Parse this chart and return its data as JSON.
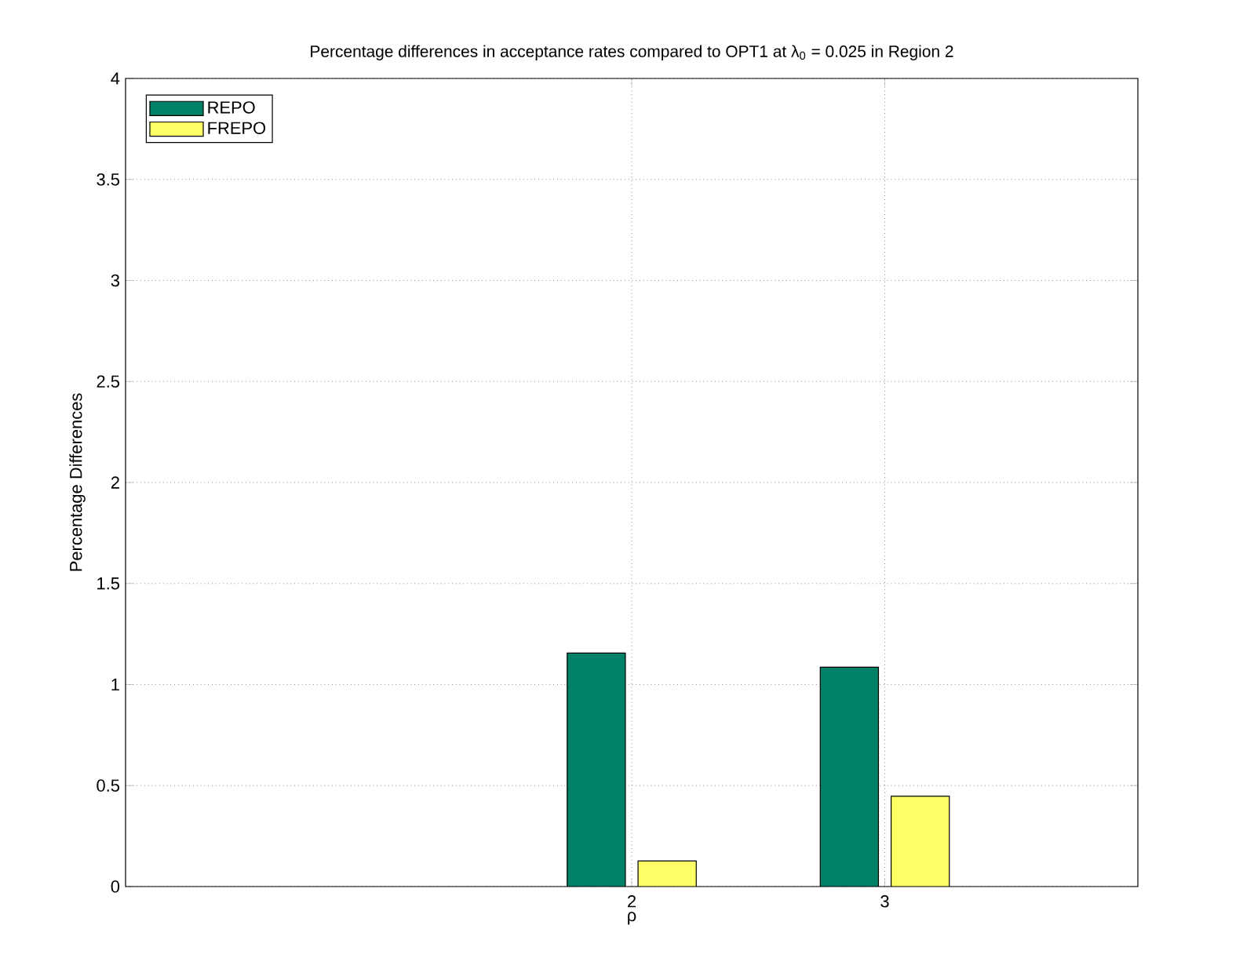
{
  "chart_data": {
    "type": "bar",
    "title": "Percentage differences in acceptance rates compared to OPT1 at λ$_{0}$ = 0.025 in Region 2",
    "xlabel": "ρ",
    "ylabel": "Percentage Differences",
    "x": [
      2,
      3
    ],
    "xlim": [
      0,
      4
    ],
    "xticks": [
      2,
      3
    ],
    "ylim": [
      0,
      4
    ],
    "yticks": [
      0,
      0.5,
      1,
      1.5,
      2,
      2.5,
      3,
      3.5,
      4
    ],
    "series": [
      {
        "name": "REPO",
        "color": "#008066",
        "values": [
          1.156,
          1.086
        ]
      },
      {
        "name": "FREPO",
        "color": "#ffff66",
        "values": [
          0.127,
          0.447
        ]
      }
    ],
    "grid": true,
    "legend": "top left"
  }
}
